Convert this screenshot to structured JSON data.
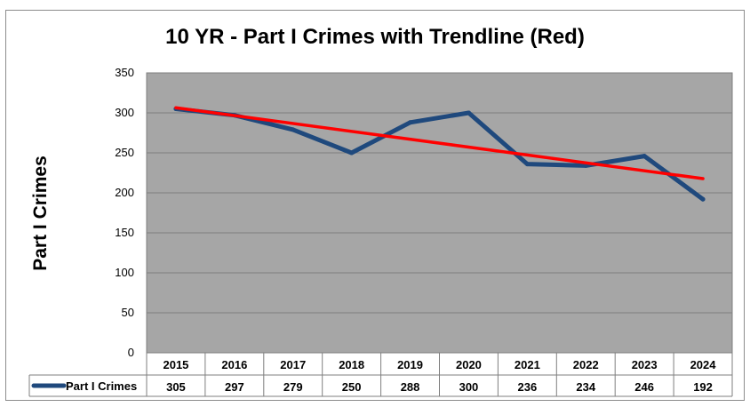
{
  "chart_data": {
    "type": "line",
    "title": "10 YR - Part I Crimes with Trendline (Red)",
    "xlabel": "",
    "ylabel": "Part I Crimes",
    "ylim": [
      0,
      350
    ],
    "yticks": [
      0,
      50,
      100,
      150,
      200,
      250,
      300,
      350
    ],
    "grid": true,
    "legend": "bottom-left (data table)",
    "categories": [
      "2015",
      "2016",
      "2017",
      "2018",
      "2019",
      "2020",
      "2021",
      "2022",
      "2023",
      "2024"
    ],
    "series": [
      {
        "name": "Part I Crimes",
        "color": "#1f497d",
        "values": [
          305,
          297,
          279,
          250,
          288,
          300,
          236,
          234,
          246,
          192
        ]
      }
    ],
    "trendline": {
      "color": "#ff0000",
      "values": [
        306.4,
        296.6,
        286.7,
        276.9,
        267.0,
        257.2,
        247.4,
        237.5,
        227.7,
        217.8
      ]
    },
    "plot_background": "#a6a6a6"
  }
}
